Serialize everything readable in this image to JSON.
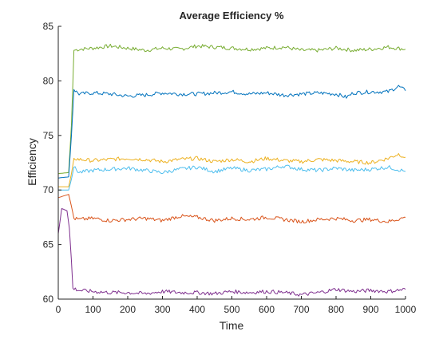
{
  "chart_data": {
    "type": "line",
    "title": "Average Efficiency %",
    "xlabel": "Time",
    "ylabel": "Efficiency",
    "xlim": [
      0,
      1000
    ],
    "ylim": [
      60,
      85
    ],
    "xticks": [
      0,
      100,
      200,
      300,
      400,
      500,
      600,
      700,
      800,
      900,
      1000
    ],
    "yticks": [
      60,
      65,
      70,
      75,
      80,
      85
    ],
    "grid": false,
    "legend": "none",
    "series": [
      {
        "color": "#77AC30",
        "x": [
          0,
          30,
          38,
          45,
          60,
          100,
          150,
          200,
          250,
          300,
          350,
          400,
          450,
          500,
          550,
          600,
          650,
          700,
          750,
          800,
          850,
          900,
          950,
          1000
        ],
        "y": [
          71.5,
          71.6,
          76.0,
          82.8,
          82.9,
          83.0,
          83.2,
          83.0,
          82.8,
          83.0,
          82.9,
          83.2,
          83.1,
          83.0,
          82.9,
          83.0,
          83.1,
          82.8,
          82.8,
          83.0,
          82.8,
          82.9,
          83.1,
          82.9
        ]
      },
      {
        "color": "#0072BD",
        "x": [
          0,
          30,
          38,
          45,
          60,
          100,
          150,
          200,
          250,
          300,
          350,
          400,
          450,
          500,
          550,
          600,
          650,
          700,
          750,
          800,
          830,
          850,
          900,
          950,
          980,
          1000
        ],
        "y": [
          71.1,
          71.2,
          75.0,
          79.2,
          78.8,
          78.9,
          78.8,
          78.6,
          78.7,
          78.9,
          78.8,
          78.8,
          78.9,
          79.0,
          78.8,
          78.9,
          78.7,
          78.8,
          78.9,
          78.8,
          78.5,
          78.9,
          79.0,
          79.0,
          79.5,
          79.1
        ]
      },
      {
        "color": "#EDB120",
        "x": [
          0,
          30,
          38,
          45,
          60,
          100,
          150,
          200,
          250,
          300,
          350,
          400,
          450,
          500,
          550,
          600,
          650,
          700,
          750,
          800,
          850,
          900,
          950,
          980,
          1000
        ],
        "y": [
          70.3,
          70.3,
          71.5,
          72.9,
          72.8,
          72.7,
          72.8,
          72.9,
          72.8,
          72.6,
          72.8,
          72.9,
          72.6,
          72.8,
          72.6,
          72.9,
          72.7,
          72.6,
          72.8,
          72.7,
          72.6,
          72.5,
          72.9,
          73.3,
          73.0
        ]
      },
      {
        "color": "#4DBEEE",
        "x": [
          0,
          30,
          38,
          45,
          60,
          100,
          150,
          200,
          250,
          300,
          350,
          400,
          450,
          500,
          550,
          600,
          650,
          700,
          750,
          800,
          850,
          900,
          950,
          1000
        ],
        "y": [
          70.0,
          70.0,
          71.0,
          72.1,
          71.6,
          71.8,
          71.9,
          72.0,
          71.8,
          71.6,
          71.9,
          72.1,
          71.7,
          72.0,
          71.8,
          71.9,
          72.2,
          71.9,
          71.8,
          72.0,
          71.8,
          71.9,
          72.1,
          71.7
        ]
      },
      {
        "color": "#D95319",
        "x": [
          0,
          30,
          38,
          45,
          60,
          100,
          150,
          200,
          250,
          300,
          350,
          400,
          450,
          500,
          550,
          600,
          650,
          700,
          750,
          800,
          850,
          900,
          950,
          1000
        ],
        "y": [
          69.3,
          69.6,
          68.5,
          67.4,
          67.3,
          67.4,
          67.2,
          67.3,
          67.4,
          67.2,
          67.6,
          67.5,
          67.2,
          67.4,
          67.3,
          67.5,
          67.3,
          67.1,
          67.3,
          67.4,
          67.2,
          67.3,
          67.1,
          67.5
        ]
      },
      {
        "color": "#7E2F8E",
        "x": [
          0,
          10,
          25,
          32,
          38,
          42,
          60,
          100,
          150,
          200,
          250,
          300,
          350,
          400,
          450,
          500,
          550,
          600,
          650,
          700,
          750,
          800,
          850,
          900,
          950,
          1000
        ],
        "y": [
          66.0,
          68.3,
          68.1,
          66.5,
          63.5,
          61.0,
          60.8,
          60.7,
          60.6,
          60.6,
          60.5,
          60.7,
          60.6,
          60.6,
          60.5,
          60.7,
          60.6,
          60.7,
          60.6,
          60.4,
          60.6,
          60.9,
          60.7,
          60.8,
          60.7,
          60.9
        ]
      }
    ]
  }
}
